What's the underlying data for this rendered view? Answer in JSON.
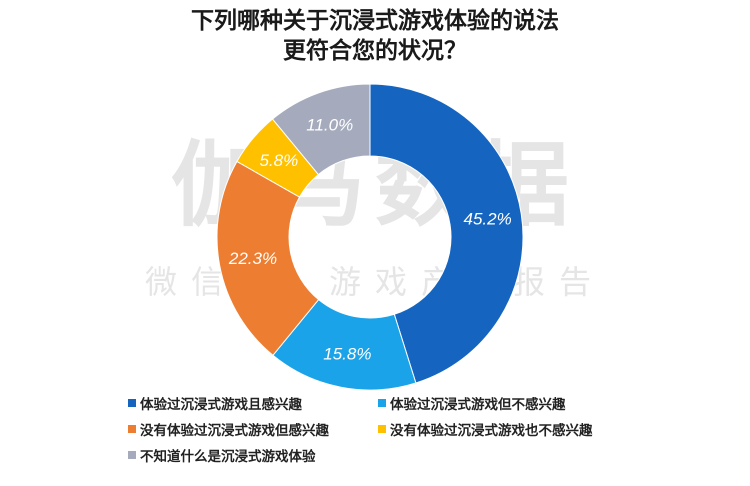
{
  "title_line1": "下列哪种关于沉浸式游戏体验的说法",
  "title_line2": "更符合您的状况？",
  "watermark_main": "伽马数据",
  "watermark_sub": "微信号：游戏产业报告",
  "chart_data": {
    "type": "pie",
    "donut": true,
    "categories": [
      "体验过沉浸式游戏且感兴趣",
      "体验过沉浸式游戏但不感兴趣",
      "没有体验过沉浸式游戏但感兴趣",
      "没有体验过沉浸式游戏也不感兴趣",
      "不知道什么是沉浸式游戏体验"
    ],
    "values": [
      45.2,
      15.8,
      22.3,
      5.8,
      11.0
    ],
    "labels": [
      "45.2%",
      "15.8%",
      "22.3%",
      "5.8%",
      "11.0%"
    ],
    "colors": [
      "#1565c0",
      "#1aa3e8",
      "#ed7d31",
      "#ffc000",
      "#a5abbd"
    ],
    "legend_placement": "bottom"
  }
}
